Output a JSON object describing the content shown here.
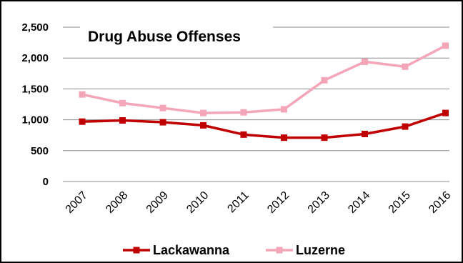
{
  "chart_data": {
    "type": "line",
    "title": "Drug Abuse Offenses",
    "xlabel": "",
    "ylabel": "",
    "categories": [
      "2007",
      "2008",
      "2009",
      "2010",
      "2011",
      "2012",
      "2013",
      "2014",
      "2015",
      "2016"
    ],
    "y_ticks": [
      "2,500",
      "2,000",
      "1,500",
      "1,000",
      "500",
      "0"
    ],
    "y_tick_values": [
      2500,
      2000,
      1500,
      1000,
      500,
      0
    ],
    "ylim": [
      0,
      2500
    ],
    "grid": true,
    "legend_position": "bottom",
    "series": [
      {
        "name": "Lackawanna",
        "color": "#c00000",
        "marker": "square",
        "values": [
          970,
          990,
          960,
          910,
          760,
          710,
          710,
          770,
          890,
          1110
        ]
      },
      {
        "name": "Luzerne",
        "color": "#f4a6b8",
        "marker": "square",
        "values": [
          1410,
          1270,
          1190,
          1110,
          1120,
          1170,
          1640,
          1940,
          1860,
          2200
        ]
      }
    ]
  }
}
